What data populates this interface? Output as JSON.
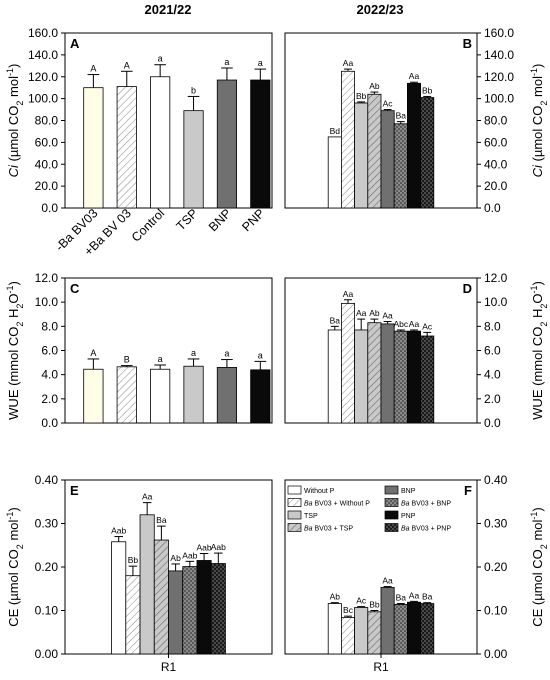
{
  "figure": {
    "column_titles": [
      "2021/22",
      "2022/23"
    ]
  },
  "patterns": {
    "yellow": "#FFFDE6",
    "white": "#FFFFFF",
    "lightgray": "#C9C9C9",
    "midgray": "#707070",
    "darkgray": "#2E2E2E",
    "black": "#0A0A0A"
  },
  "chart_data": [
    {
      "id": "A",
      "panel_label": "A",
      "type": "bar",
      "ylabel_italic": "Ci",
      "ylabel_rest": " (µmol CO",
      "ylabel_sub": "2",
      "ylabel_end": " mol",
      "ylabel_sup": "-1",
      "ylabel_close": ")",
      "ylim": [
        0,
        160
      ],
      "yticks": [
        "0.0",
        "20.0",
        "40.0",
        "60.0",
        "80.0",
        "100.0",
        "120.0",
        "140.0",
        "160.0"
      ],
      "categories": [
        "-Ba BV03",
        "+Ba BV 03",
        "Control",
        "TSP",
        "BNP",
        "PNP"
      ],
      "values": [
        110,
        111,
        120,
        89,
        117,
        117
      ],
      "errors": [
        12,
        14,
        11,
        13,
        11,
        10
      ],
      "letters": [
        "A",
        "A",
        "a",
        "b",
        "a",
        "a"
      ],
      "fills": [
        "yellow",
        "white-hatch",
        "white",
        "lightgray",
        "midgray",
        "black"
      ]
    },
    {
      "id": "B",
      "panel_label": "B",
      "type": "bar",
      "ylabel_italic": "Ci",
      "ylabel_rest": " (µmol CO",
      "ylabel_sub": "2",
      "ylabel_end": " mol",
      "ylabel_sup": "-1",
      "ylabel_close": ")",
      "ylim": [
        0,
        160
      ],
      "yticks": [
        "0.0",
        "20.0",
        "40.0",
        "60.0",
        "80.0",
        "100.0",
        "120.0",
        "140.0",
        "160.0"
      ],
      "categories": [
        "Without P",
        "Ba BV03 + Without P",
        "TSP",
        "Ba BV03 + TSP",
        "BNP",
        "Ba BV03 + BNP",
        "PNP",
        "Ba BV03 + PNP"
      ],
      "values": [
        65,
        125,
        96,
        104,
        89,
        77,
        114,
        101
      ],
      "errors": [
        0,
        2,
        1,
        2,
        1,
        2,
        1,
        1
      ],
      "letters": [
        "Bd",
        "Aa",
        "Bb",
        "Ab",
        "Ac",
        "Ba",
        "Aa",
        "Bb"
      ],
      "fills": [
        "white",
        "white-hatch",
        "lightgray",
        "lightgray-hatch",
        "midgray",
        "midgray-hatch",
        "black",
        "black-hatch"
      ]
    },
    {
      "id": "C",
      "panel_label": "C",
      "type": "bar",
      "ylabel_plain": "WUE (mmol CO",
      "ylabel_sub": "2",
      "ylabel_mid": " H",
      "ylabel_sub2": "2",
      "ylabel_end": "O",
      "ylabel_sup": "-1",
      "ylabel_close": ")",
      "ylim": [
        0,
        12
      ],
      "yticks": [
        "0.0",
        "2.0",
        "4.0",
        "6.0",
        "8.0",
        "10.0",
        "12.0"
      ],
      "categories": [
        "-Ba BV03",
        "+Ba BV 03",
        "Control",
        "TSP",
        "BNP",
        "PNP"
      ],
      "values": [
        4.45,
        4.65,
        4.45,
        4.7,
        4.6,
        4.4
      ],
      "errors": [
        0.85,
        0.1,
        0.35,
        0.6,
        0.65,
        0.7
      ],
      "letters": [
        "A",
        "B",
        "a",
        "a",
        "a",
        "a"
      ],
      "fills": [
        "yellow",
        "white-hatch",
        "white",
        "lightgray",
        "midgray",
        "black"
      ]
    },
    {
      "id": "D",
      "panel_label": "D",
      "type": "bar",
      "ylabel_plain": "WUE (mmol CO",
      "ylabel_sub": "2",
      "ylabel_mid": " H",
      "ylabel_sub2": "2",
      "ylabel_end": "O",
      "ylabel_sup": "-1",
      "ylabel_close": ")",
      "ylim": [
        0,
        12
      ],
      "yticks": [
        "0.0",
        "2.0",
        "4.0",
        "6.0",
        "8.0",
        "10.0",
        "12.0"
      ],
      "categories": [
        "Without P",
        "Ba BV03 + Without P",
        "TSP",
        "Ba BV03 + TSP",
        "BNP",
        "Ba BV03 + BNP",
        "PNP",
        "Ba BV03 + PNP"
      ],
      "values": [
        7.7,
        9.9,
        7.7,
        8.3,
        8.2,
        7.6,
        7.6,
        7.2
      ],
      "errors": [
        0.3,
        0.3,
        0.9,
        0.3,
        0.2,
        0.1,
        0.1,
        0.3
      ],
      "letters": [
        "Ba",
        "Aa",
        "Aa",
        "Ab",
        "Aa",
        "Abc",
        "Aa",
        "Ac"
      ],
      "fills": [
        "white",
        "white-hatch",
        "lightgray",
        "lightgray-hatch",
        "midgray",
        "midgray-hatch",
        "black",
        "black-hatch"
      ]
    },
    {
      "id": "E",
      "panel_label": "E",
      "type": "bar",
      "ylabel_plain": "CE (µmol CO",
      "ylabel_sub": "2",
      "ylabel_end": " mol",
      "ylabel_sup": "-1",
      "ylabel_close": ")",
      "ylim": [
        0,
        0.4
      ],
      "yticks": [
        "0.00",
        "0.10",
        "0.20",
        "0.30",
        "0.40"
      ],
      "xlabel": "R1",
      "categories": [
        "Without P",
        "Ba BV03 + Without P",
        "TSP",
        "Ba BV03 + TSP",
        "BNP",
        "Ba BV03 + BNP",
        "PNP",
        "Ba BV03 + PNP"
      ],
      "values": [
        0.258,
        0.18,
        0.32,
        0.262,
        0.191,
        0.201,
        0.215,
        0.208
      ],
      "errors": [
        0.012,
        0.022,
        0.028,
        0.032,
        0.016,
        0.012,
        0.016,
        0.024
      ],
      "letters": [
        "Aab",
        "Bb",
        "Aa",
        "Ba",
        "Ab",
        "Aab",
        "Aab",
        "Aab"
      ],
      "fills": [
        "white",
        "white-hatch",
        "lightgray",
        "lightgray-hatch",
        "midgray",
        "midgray-hatch",
        "black",
        "black-hatch"
      ]
    },
    {
      "id": "F",
      "panel_label": "F",
      "type": "bar",
      "ylabel_plain": "CE (µmol CO",
      "ylabel_sub": "2",
      "ylabel_end": " mol",
      "ylabel_sup": "-1",
      "ylabel_close": ")",
      "ylim": [
        0,
        0.4
      ],
      "yticks": [
        "0.00",
        "0.10",
        "0.20",
        "0.30",
        "0.40"
      ],
      "xlabel": "R1",
      "categories": [
        "Without P",
        "Ba BV03 + Without P",
        "TSP",
        "Ba BV03 + TSP",
        "BNP",
        "Ba BV03 + BNP",
        "PNP",
        "Ba BV03 + PNP"
      ],
      "values": [
        0.116,
        0.084,
        0.107,
        0.097,
        0.153,
        0.114,
        0.119,
        0.116
      ],
      "errors": [
        0.002,
        0.003,
        0.002,
        0.003,
        0.002,
        0.002,
        0.002,
        0.002
      ],
      "letters": [
        "Ab",
        "Bc",
        "Ac",
        "Bb",
        "Aa",
        "Ba",
        "Aa",
        "Ba"
      ],
      "fills": [
        "white",
        "white-hatch",
        "lightgray",
        "lightgray-hatch",
        "midgray",
        "midgray-hatch",
        "black",
        "black-hatch"
      ],
      "legend": {
        "col1": [
          {
            "label": "Without P",
            "fill": "white"
          },
          {
            "label_italic": "Ba",
            "label": " BV03 + Without P",
            "fill": "white-hatch"
          },
          {
            "label": "TSP",
            "fill": "lightgray"
          },
          {
            "label_italic": "Ba",
            "label": " BV03 + TSP",
            "fill": "lightgray-hatch"
          }
        ],
        "col2": [
          {
            "label": "BNP",
            "fill": "midgray"
          },
          {
            "label_italic": "Ba",
            "label": " BV03 + BNP",
            "fill": "midgray-hatch"
          },
          {
            "label": "PNP",
            "fill": "black"
          },
          {
            "label_italic": "Ba",
            "label": " BV03 + PNP",
            "fill": "black-hatch"
          }
        ]
      }
    }
  ]
}
